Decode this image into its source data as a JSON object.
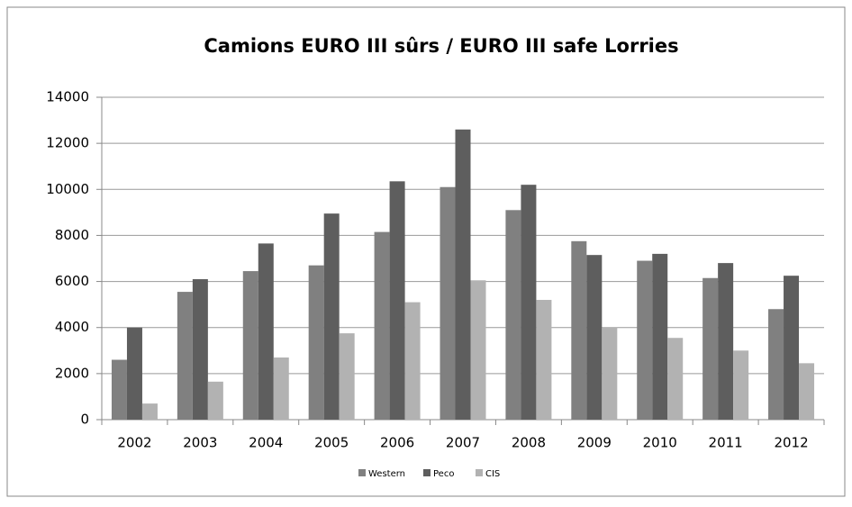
{
  "chart_data": {
    "type": "bar",
    "title": "Camions EURO III sûrs / EURO III safe Lorries",
    "categories": [
      "2002",
      "2003",
      "2004",
      "2005",
      "2006",
      "2007",
      "2008",
      "2009",
      "2010",
      "2011",
      "2012"
    ],
    "series": [
      {
        "name": "Western",
        "color": "#808080",
        "values": [
          2600,
          5550,
          6450,
          6700,
          8150,
          10100,
          9100,
          7750,
          6900,
          6150,
          4800
        ]
      },
      {
        "name": "Peco",
        "color": "#5e5e5e",
        "values": [
          4000,
          6100,
          7650,
          8950,
          10350,
          12600,
          10200,
          7150,
          7200,
          6800,
          6250
        ]
      },
      {
        "name": "CIS",
        "color": "#b2b2b2",
        "values": [
          700,
          1650,
          2700,
          3750,
          5100,
          6050,
          5200,
          4000,
          3550,
          3000,
          2450
        ]
      }
    ],
    "ylim": [
      0,
      14000
    ],
    "yticks": [
      0,
      2000,
      4000,
      6000,
      8000,
      10000,
      12000,
      14000
    ],
    "grid": true,
    "legend": "bottom"
  }
}
